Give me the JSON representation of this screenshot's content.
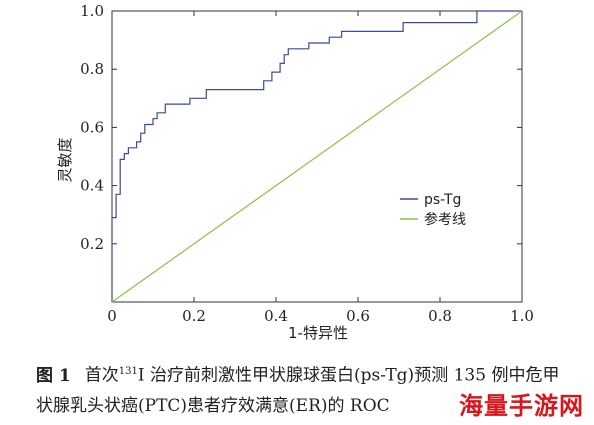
{
  "chart_data": {
    "type": "line",
    "xlabel": "1-特异性",
    "ylabel": "灵敏度",
    "xlim": [
      0,
      1
    ],
    "ylim": [
      0,
      1
    ],
    "x_ticks": [
      "0",
      "0.2",
      "0.4",
      "0.6",
      "0.8",
      "1.0"
    ],
    "y_ticks": [
      "0.2",
      "0.4",
      "0.6",
      "0.8",
      "1.0"
    ],
    "x_tick_values": [
      0,
      0.2,
      0.4,
      0.6,
      0.8,
      1.0
    ],
    "y_tick_values": [
      0.2,
      0.4,
      0.6,
      0.8,
      1.0
    ],
    "grid": false,
    "legend_position": "center-right",
    "series": [
      {
        "name": "ps-Tg",
        "color": "#3a4a9c",
        "style": "step",
        "x": [
          0,
          0,
          0.01,
          0.01,
          0.02,
          0.02,
          0.03,
          0.03,
          0.04,
          0.04,
          0.06,
          0.06,
          0.07,
          0.07,
          0.08,
          0.08,
          0.1,
          0.1,
          0.11,
          0.11,
          0.13,
          0.13,
          0.19,
          0.19,
          0.23,
          0.23,
          0.37,
          0.37,
          0.39,
          0.39,
          0.41,
          0.41,
          0.42,
          0.42,
          0.43,
          0.43,
          0.48,
          0.48,
          0.53,
          0.53,
          0.56,
          0.56,
          0.71,
          0.71,
          0.89,
          0.89,
          1.0
        ],
        "y": [
          0,
          0.29,
          0.29,
          0.37,
          0.37,
          0.49,
          0.49,
          0.51,
          0.51,
          0.53,
          0.53,
          0.55,
          0.55,
          0.58,
          0.58,
          0.61,
          0.61,
          0.63,
          0.63,
          0.65,
          0.65,
          0.68,
          0.68,
          0.7,
          0.7,
          0.73,
          0.73,
          0.76,
          0.76,
          0.79,
          0.79,
          0.82,
          0.82,
          0.85,
          0.85,
          0.87,
          0.87,
          0.89,
          0.89,
          0.91,
          0.91,
          0.93,
          0.93,
          0.96,
          0.96,
          1.0,
          1.0
        ]
      },
      {
        "name": "参考线",
        "color": "#8cbf4a",
        "style": "line",
        "x": [
          0,
          1
        ],
        "y": [
          0,
          1
        ]
      }
    ]
  },
  "caption": {
    "label": "图 1",
    "text_before_sup": "首次",
    "sup": "131",
    "text_after_sup": "I 治疗前刺激性甲状腺球蛋白(ps-Tg)预测 135 例中危甲状腺乳头状癌(PTC)患者疗效满意(ER)的 ROC"
  },
  "watermark": "海量手游网"
}
